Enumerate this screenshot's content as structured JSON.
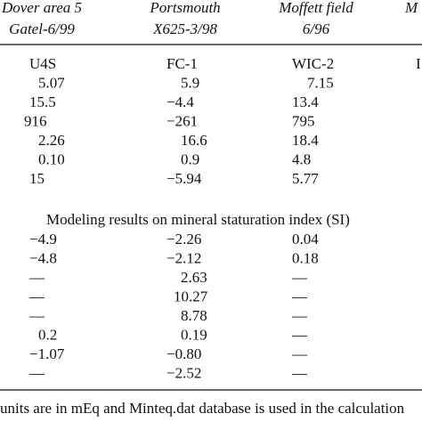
{
  "header": {
    "columns": [
      [
        "Dover area 5",
        "Gatel-6/99"
      ],
      [
        "Portsmouth",
        "X625-3/98"
      ],
      [
        "Moffett field",
        "6/96"
      ],
      [
        "M"
      ]
    ]
  },
  "table": {
    "rows": [
      [
        "U4S",
        "FC-1",
        "WIC-2",
        "I"
      ],
      [
        "5.07",
        "5.9",
        "7.15"
      ],
      [
        "15.5",
        "−4.4",
        "13.4"
      ],
      [
        "916",
        "−261",
        "795"
      ],
      [
        "2.26",
        "16.6",
        "18.4"
      ],
      [
        "0.10",
        "0.9",
        "4.8"
      ],
      [
        "15",
        "−5.94",
        "5.77"
      ]
    ],
    "section_title": "Modeling results on mineral staturation index (SI)",
    "section_rows": [
      [
        "−4.9",
        "−2.26",
        "0.04"
      ],
      [
        "−4.8",
        "−2.12",
        "0.18"
      ],
      [
        "—",
        "2.63",
        "—"
      ],
      [
        "—",
        "10.27",
        "—"
      ],
      [
        "—",
        "8.78",
        "—"
      ],
      [
        "0.2",
        "0.19",
        "—"
      ],
      [
        "−1.07",
        "−0.80",
        "—"
      ],
      [
        "—",
        "−2.52",
        "—"
      ]
    ]
  },
  "footnote": "units are in mEq and Minteq.dat database is used in the calculation"
}
